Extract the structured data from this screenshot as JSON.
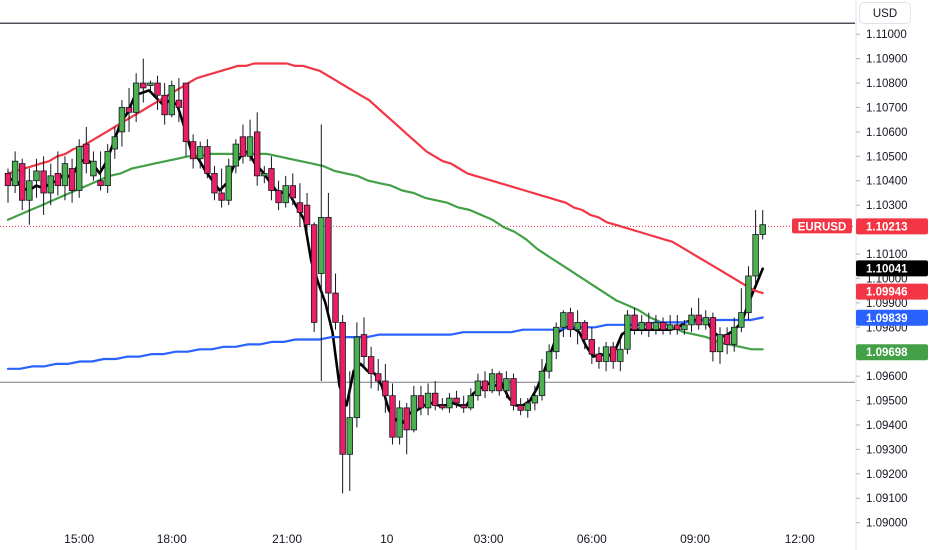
{
  "currency_label": "USD",
  "chart_data": {
    "type": "candlestick",
    "symbol": "EURUSD",
    "ylim": [
      1.0897,
      1.1114
    ],
    "y_ticks": [
      "1.11000",
      "1.10900",
      "1.10800",
      "1.10700",
      "1.10600",
      "1.10500",
      "1.10400",
      "1.10300",
      "1.10200",
      "1.10100",
      "1.10000",
      "1.09900",
      "1.09800",
      "1.09700",
      "1.09600",
      "1.09500",
      "1.09400",
      "1.09300",
      "1.09200",
      "1.09100",
      "1.09000"
    ],
    "x_ticks": [
      "15:00",
      "18:00",
      "21:00",
      "10",
      "03:00",
      "06:00",
      "09:00",
      "12:00"
    ],
    "horizontal_lines": [
      1.11045,
      1.09575
    ],
    "current_price_line": 1.10213,
    "price_tags": [
      {
        "label": "EURUSD",
        "value": "1.10213",
        "color": "#f23645"
      },
      {
        "value": "1.10041",
        "color": "#000000"
      },
      {
        "value": "1.09946",
        "color": "#f23645"
      },
      {
        "value": "1.09839",
        "color": "#2962ff"
      },
      {
        "value": "1.09698",
        "color": "#43a047"
      }
    ],
    "candles": [
      [
        1.1043,
        1.1045,
        1.1031,
        1.1038
      ],
      [
        1.1038,
        1.1052,
        1.1035,
        1.1048
      ],
      [
        1.1047,
        1.1049,
        1.1028,
        1.1032
      ],
      [
        1.1032,
        1.1045,
        1.1022,
        1.104
      ],
      [
        1.104,
        1.1049,
        1.1033,
        1.1044
      ],
      [
        1.1044,
        1.105,
        1.1026,
        1.1035
      ],
      [
        1.1035,
        1.1047,
        1.103,
        1.1042
      ],
      [
        1.1043,
        1.1052,
        1.1034,
        1.1038
      ],
      [
        1.1038,
        1.105,
        1.1032,
        1.1047
      ],
      [
        1.1045,
        1.1049,
        1.1031,
        1.1036
      ],
      [
        1.1036,
        1.1057,
        1.1033,
        1.1054
      ],
      [
        1.1055,
        1.1062,
        1.1043,
        1.1047
      ],
      [
        1.1042,
        1.1052,
        1.104,
        1.1048
      ],
      [
        1.104,
        1.1052,
        1.1036,
        1.1038
      ],
      [
        1.1038,
        1.1055,
        1.1035,
        1.1052
      ],
      [
        1.1053,
        1.1062,
        1.1049,
        1.1058
      ],
      [
        1.106,
        1.1073,
        1.1054,
        1.107
      ],
      [
        1.107,
        1.1078,
        1.106,
        1.1068
      ],
      [
        1.1068,
        1.1084,
        1.1064,
        1.108
      ],
      [
        1.108,
        1.109,
        1.1072,
        1.1078
      ],
      [
        1.1079,
        1.1081,
        1.1077,
        1.108
      ],
      [
        1.108,
        1.1083,
        1.1069,
        1.1075
      ],
      [
        1.1075,
        1.108,
        1.1063,
        1.1067
      ],
      [
        1.1067,
        1.1081,
        1.1066,
        1.1079
      ],
      [
        1.1073,
        1.1082,
        1.1064,
        1.107
      ],
      [
        1.108,
        1.108,
        1.105,
        1.1056
      ],
      [
        1.1056,
        1.1059,
        1.1045,
        1.1049
      ],
      [
        1.1049,
        1.1056,
        1.1045,
        1.1054
      ],
      [
        1.1054,
        1.1057,
        1.1041,
        1.1043
      ],
      [
        1.1043,
        1.1046,
        1.1032,
        1.1035
      ],
      [
        1.1035,
        1.1045,
        1.1029,
        1.1032
      ],
      [
        1.1032,
        1.1049,
        1.103,
        1.1046
      ],
      [
        1.1046,
        1.1057,
        1.1043,
        1.1055
      ],
      [
        1.1058,
        1.1063,
        1.1047,
        1.105
      ],
      [
        1.105,
        1.1065,
        1.1048,
        1.1058
      ],
      [
        1.106,
        1.1068,
        1.1038,
        1.1042
      ],
      [
        1.1042,
        1.1046,
        1.1039,
        1.1043
      ],
      [
        1.1045,
        1.105,
        1.1032,
        1.1036
      ],
      [
        1.1036,
        1.104,
        1.1028,
        1.1031
      ],
      [
        1.1031,
        1.1042,
        1.1029,
        1.1038
      ],
      [
        1.1038,
        1.1043,
        1.103,
        1.1033
      ],
      [
        1.1031,
        1.1039,
        1.1021,
        1.1027
      ],
      [
        1.103,
        1.1035,
        1.1018,
        1.1022
      ],
      [
        1.1022,
        1.1023,
        1.0978,
        1.0982
      ],
      [
        1.1002,
        1.1063,
        1.0958,
        1.1025
      ],
      [
        1.1025,
        1.1035,
        1.0986,
        1.0994
      ],
      [
        1.0994,
        1.1002,
        1.0979,
        1.0982
      ],
      [
        1.0982,
        1.0985,
        1.0912,
        1.0928
      ],
      [
        1.0928,
        1.0962,
        1.0913,
        1.0943
      ],
      [
        1.0943,
        1.0982,
        1.0939,
        1.0976
      ],
      [
        1.0977,
        1.0984,
        1.0964,
        1.0968
      ],
      [
        1.0968,
        1.0972,
        1.0955,
        1.0961
      ],
      [
        1.0961,
        1.0967,
        1.0954,
        1.0958
      ],
      [
        1.0958,
        1.0965,
        1.0945,
        1.0952
      ],
      [
        1.0952,
        1.0957,
        1.0932,
        1.0935
      ],
      [
        1.0935,
        1.095,
        1.0932,
        1.0947
      ],
      [
        1.0947,
        1.0949,
        1.0928,
        1.0938
      ],
      [
        1.0938,
        1.0956,
        1.0937,
        1.0952
      ],
      [
        1.0952,
        1.0956,
        1.0944,
        1.0947
      ],
      [
        1.0947,
        1.0957,
        1.0944,
        1.0953
      ],
      [
        1.0953,
        1.0958,
        1.0946,
        1.0948
      ],
      [
        1.0948,
        1.0951,
        1.0946,
        1.0947
      ],
      [
        1.0947,
        1.0953,
        1.0945,
        1.0951
      ],
      [
        1.0951,
        1.0954,
        1.0947,
        1.0949
      ],
      [
        1.0948,
        1.0952,
        1.0945,
        1.0947
      ],
      [
        1.0947,
        1.0955,
        1.0946,
        1.0952
      ],
      [
        1.0952,
        1.0961,
        1.095,
        1.0958
      ],
      [
        1.0958,
        1.0962,
        1.0951,
        1.0954
      ],
      [
        1.0954,
        1.0963,
        1.0953,
        1.0961
      ],
      [
        1.0961,
        1.0962,
        1.0952,
        1.0954
      ],
      [
        1.0954,
        1.0962,
        1.0951,
        1.0959
      ],
      [
        1.0959,
        1.0961,
        1.0946,
        1.0948
      ],
      [
        1.0948,
        1.0951,
        1.0944,
        1.0946
      ],
      [
        1.0946,
        1.0951,
        1.0943,
        1.0949
      ],
      [
        1.0949,
        1.0956,
        1.0946,
        1.0952
      ],
      [
        1.0952,
        1.0967,
        1.095,
        1.0962
      ],
      [
        1.0962,
        1.0973,
        1.0959,
        1.097
      ],
      [
        1.097,
        1.0982,
        1.0967,
        1.098
      ],
      [
        1.098,
        1.0987,
        1.0976,
        1.0986
      ],
      [
        1.0986,
        1.0988,
        1.0976,
        1.0979
      ],
      [
        1.0979,
        1.0987,
        1.0973,
        1.0982
      ],
      [
        1.0982,
        1.0983,
        1.0971,
        1.0975
      ],
      [
        1.0975,
        1.098,
        1.0965,
        1.0969
      ],
      [
        1.0969,
        1.0972,
        1.0963,
        1.0966
      ],
      [
        1.0966,
        1.0974,
        1.0962,
        1.0972
      ],
      [
        1.0972,
        1.0974,
        1.0963,
        1.0966
      ],
      [
        1.0966,
        1.0975,
        1.0962,
        1.0971
      ],
      [
        1.0971,
        1.0987,
        1.0969,
        1.0985
      ],
      [
        1.0985,
        1.0988,
        1.0977,
        1.0979
      ],
      [
        1.0979,
        1.0985,
        1.0977,
        1.0982
      ],
      [
        1.0982,
        1.0986,
        1.0976,
        1.0979
      ],
      [
        1.0979,
        1.0985,
        1.0977,
        1.0982
      ],
      [
        1.0982,
        1.0984,
        1.0977,
        1.0979
      ],
      [
        1.0979,
        1.0985,
        1.0977,
        1.0981
      ],
      [
        1.0981,
        1.0985,
        1.0977,
        1.0979
      ],
      [
        1.0979,
        1.0983,
        1.0977,
        1.0981
      ],
      [
        1.0981,
        1.0988,
        1.0978,
        1.0985
      ],
      [
        1.0985,
        1.0992,
        1.0979,
        1.0981
      ],
      [
        1.0981,
        1.0987,
        1.0979,
        1.0984
      ],
      [
        1.0984,
        1.0986,
        1.0966,
        1.097
      ],
      [
        1.097,
        1.098,
        1.0965,
        1.0977
      ],
      [
        1.0977,
        1.098,
        1.0969,
        1.0973
      ],
      [
        1.0973,
        1.0984,
        1.097,
        1.098
      ],
      [
        1.098,
        1.0996,
        1.0978,
        1.0986
      ],
      [
        1.0986,
        1.1005,
        1.0983,
        1.1001
      ],
      [
        1.1001,
        1.1028,
        1.0998,
        1.1018
      ],
      [
        1.1018,
        1.1028,
        1.1016,
        1.1022
      ]
    ],
    "series": [
      {
        "name": "",
        "color": "#000000",
        "values": [
          1.104,
          1.1041,
          1.1037,
          1.1036,
          1.1038,
          1.1037,
          1.1039,
          1.104,
          1.1043,
          1.1041,
          1.1047,
          1.1049,
          1.1047,
          1.1043,
          1.1048,
          1.1056,
          1.1064,
          1.1068,
          1.1075,
          1.1076,
          1.1077,
          1.1074,
          1.1071,
          1.1073,
          1.1071,
          1.1062,
          1.1052,
          1.1049,
          1.1044,
          1.104,
          1.1036,
          1.1039,
          1.1046,
          1.105,
          1.1052,
          1.1047,
          1.1044,
          1.104,
          1.1036,
          1.1035,
          1.1034,
          1.1029,
          1.1024,
          1.1007,
          1.0998,
          1.099,
          1.0978,
          1.0956,
          1.0948,
          1.0962,
          1.0965,
          1.0962,
          1.0961,
          1.0956,
          1.0946,
          1.0942,
          1.0941,
          1.0945,
          1.0946,
          1.0948,
          1.0949,
          1.0948,
          1.0948,
          1.0949,
          1.0948,
          1.0948,
          1.0953,
          1.0955,
          1.0957,
          1.0956,
          1.0957,
          1.0951,
          1.0948,
          1.0948,
          1.095,
          1.0955,
          1.0962,
          1.097,
          1.0978,
          1.098,
          1.098,
          1.0978,
          1.0972,
          1.0968,
          1.0969,
          1.0968,
          1.097,
          1.0977,
          1.0979,
          1.0979,
          1.0979,
          1.0979,
          1.0979,
          1.0979,
          1.0979,
          1.098,
          1.0982,
          1.0983,
          1.0983,
          1.0983,
          1.0978,
          1.0976,
          1.0977,
          1.0979,
          1.0982,
          1.099,
          1.0997,
          1.1004
        ]
      },
      {
        "name": "",
        "color": "#43a047",
        "values": [
          1.1024,
          1.1026,
          1.1028,
          1.103,
          1.1032,
          1.1034,
          1.1036,
          1.1038,
          1.104,
          1.1042,
          1.1043,
          1.1045,
          1.1046,
          1.1047,
          1.1048,
          1.1049,
          1.105,
          1.105,
          1.1051,
          1.1051,
          1.1051,
          1.1051,
          1.1051,
          1.1051,
          1.105,
          1.1049,
          1.1048,
          1.1047,
          1.1046,
          1.1044,
          1.1043,
          1.1042,
          1.104,
          1.1039,
          1.1038,
          1.1036,
          1.1035,
          1.1033,
          1.1032,
          1.1031,
          1.1029,
          1.1028,
          1.1026,
          1.1024,
          1.1021,
          1.1019,
          1.1016,
          1.1012,
          1.1009,
          1.1006,
          1.1003,
          1.1,
          1.0997,
          1.0994,
          1.0991,
          1.0989,
          1.0987,
          1.0984,
          1.0982,
          1.098,
          1.0978,
          1.0977,
          1.0976,
          1.0974,
          1.0973,
          1.0972,
          1.0971,
          1.0971
        ]
      },
      {
        "name": "",
        "color": "#f23645",
        "values": [
          1.1043,
          1.1044,
          1.1045,
          1.1046,
          1.1047,
          1.1048,
          1.105,
          1.1051,
          1.1053,
          1.1054,
          1.1056,
          1.1058,
          1.106,
          1.1062,
          1.1064,
          1.1066,
          1.1068,
          1.107,
          1.1072,
          1.1074,
          1.1076,
          1.1078,
          1.108,
          1.1082,
          1.1083,
          1.1084,
          1.1085,
          1.1086,
          1.1087,
          1.1087,
          1.1088,
          1.1088,
          1.1088,
          1.1088,
          1.1088,
          1.1087,
          1.1087,
          1.1086,
          1.1085,
          1.1083,
          1.1081,
          1.1079,
          1.1077,
          1.1075,
          1.1073,
          1.107,
          1.1067,
          1.1064,
          1.1061,
          1.1058,
          1.1055,
          1.1052,
          1.105,
          1.1048,
          1.1047,
          1.1045,
          1.1043,
          1.1042,
          1.1041,
          1.104,
          1.1039,
          1.1038,
          1.1037,
          1.1036,
          1.1035,
          1.1034,
          1.1033,
          1.1032,
          1.1031,
          1.1029,
          1.1028,
          1.1026,
          1.1025,
          1.1023,
          1.1022,
          1.1021,
          1.102,
          1.1019,
          1.1018,
          1.1017,
          1.1016,
          1.1015,
          1.1013,
          1.1011,
          1.1009,
          1.1007,
          1.1005,
          1.1003,
          1.1001,
          1.0999,
          1.0997,
          1.0995,
          1.0994
        ]
      },
      {
        "name": "",
        "color": "#2962ff",
        "values": [
          1.0963,
          1.0963,
          1.0964,
          1.0964,
          1.0965,
          1.0965,
          1.0966,
          1.0966,
          1.0967,
          1.0967,
          1.0968,
          1.0968,
          1.0969,
          1.0969,
          1.097,
          1.097,
          1.0971,
          1.0971,
          1.0972,
          1.0972,
          1.0973,
          1.0973,
          1.0974,
          1.0974,
          1.0975,
          1.0975,
          1.0975,
          1.0976,
          1.0976,
          1.0976,
          1.0976,
          1.0977,
          1.0977,
          1.0977,
          1.0977,
          1.0977,
          1.0977,
          1.0977,
          1.0978,
          1.0978,
          1.0978,
          1.0978,
          1.0978,
          1.0979,
          1.0979,
          1.0979,
          1.0979,
          1.098,
          1.098,
          1.098,
          1.0981,
          1.0981,
          1.0981,
          1.0981,
          1.0982,
          1.0982,
          1.0982,
          1.0982,
          1.0983,
          1.0983,
          1.0983,
          1.0983,
          1.0983,
          1.0984
        ]
      }
    ]
  }
}
